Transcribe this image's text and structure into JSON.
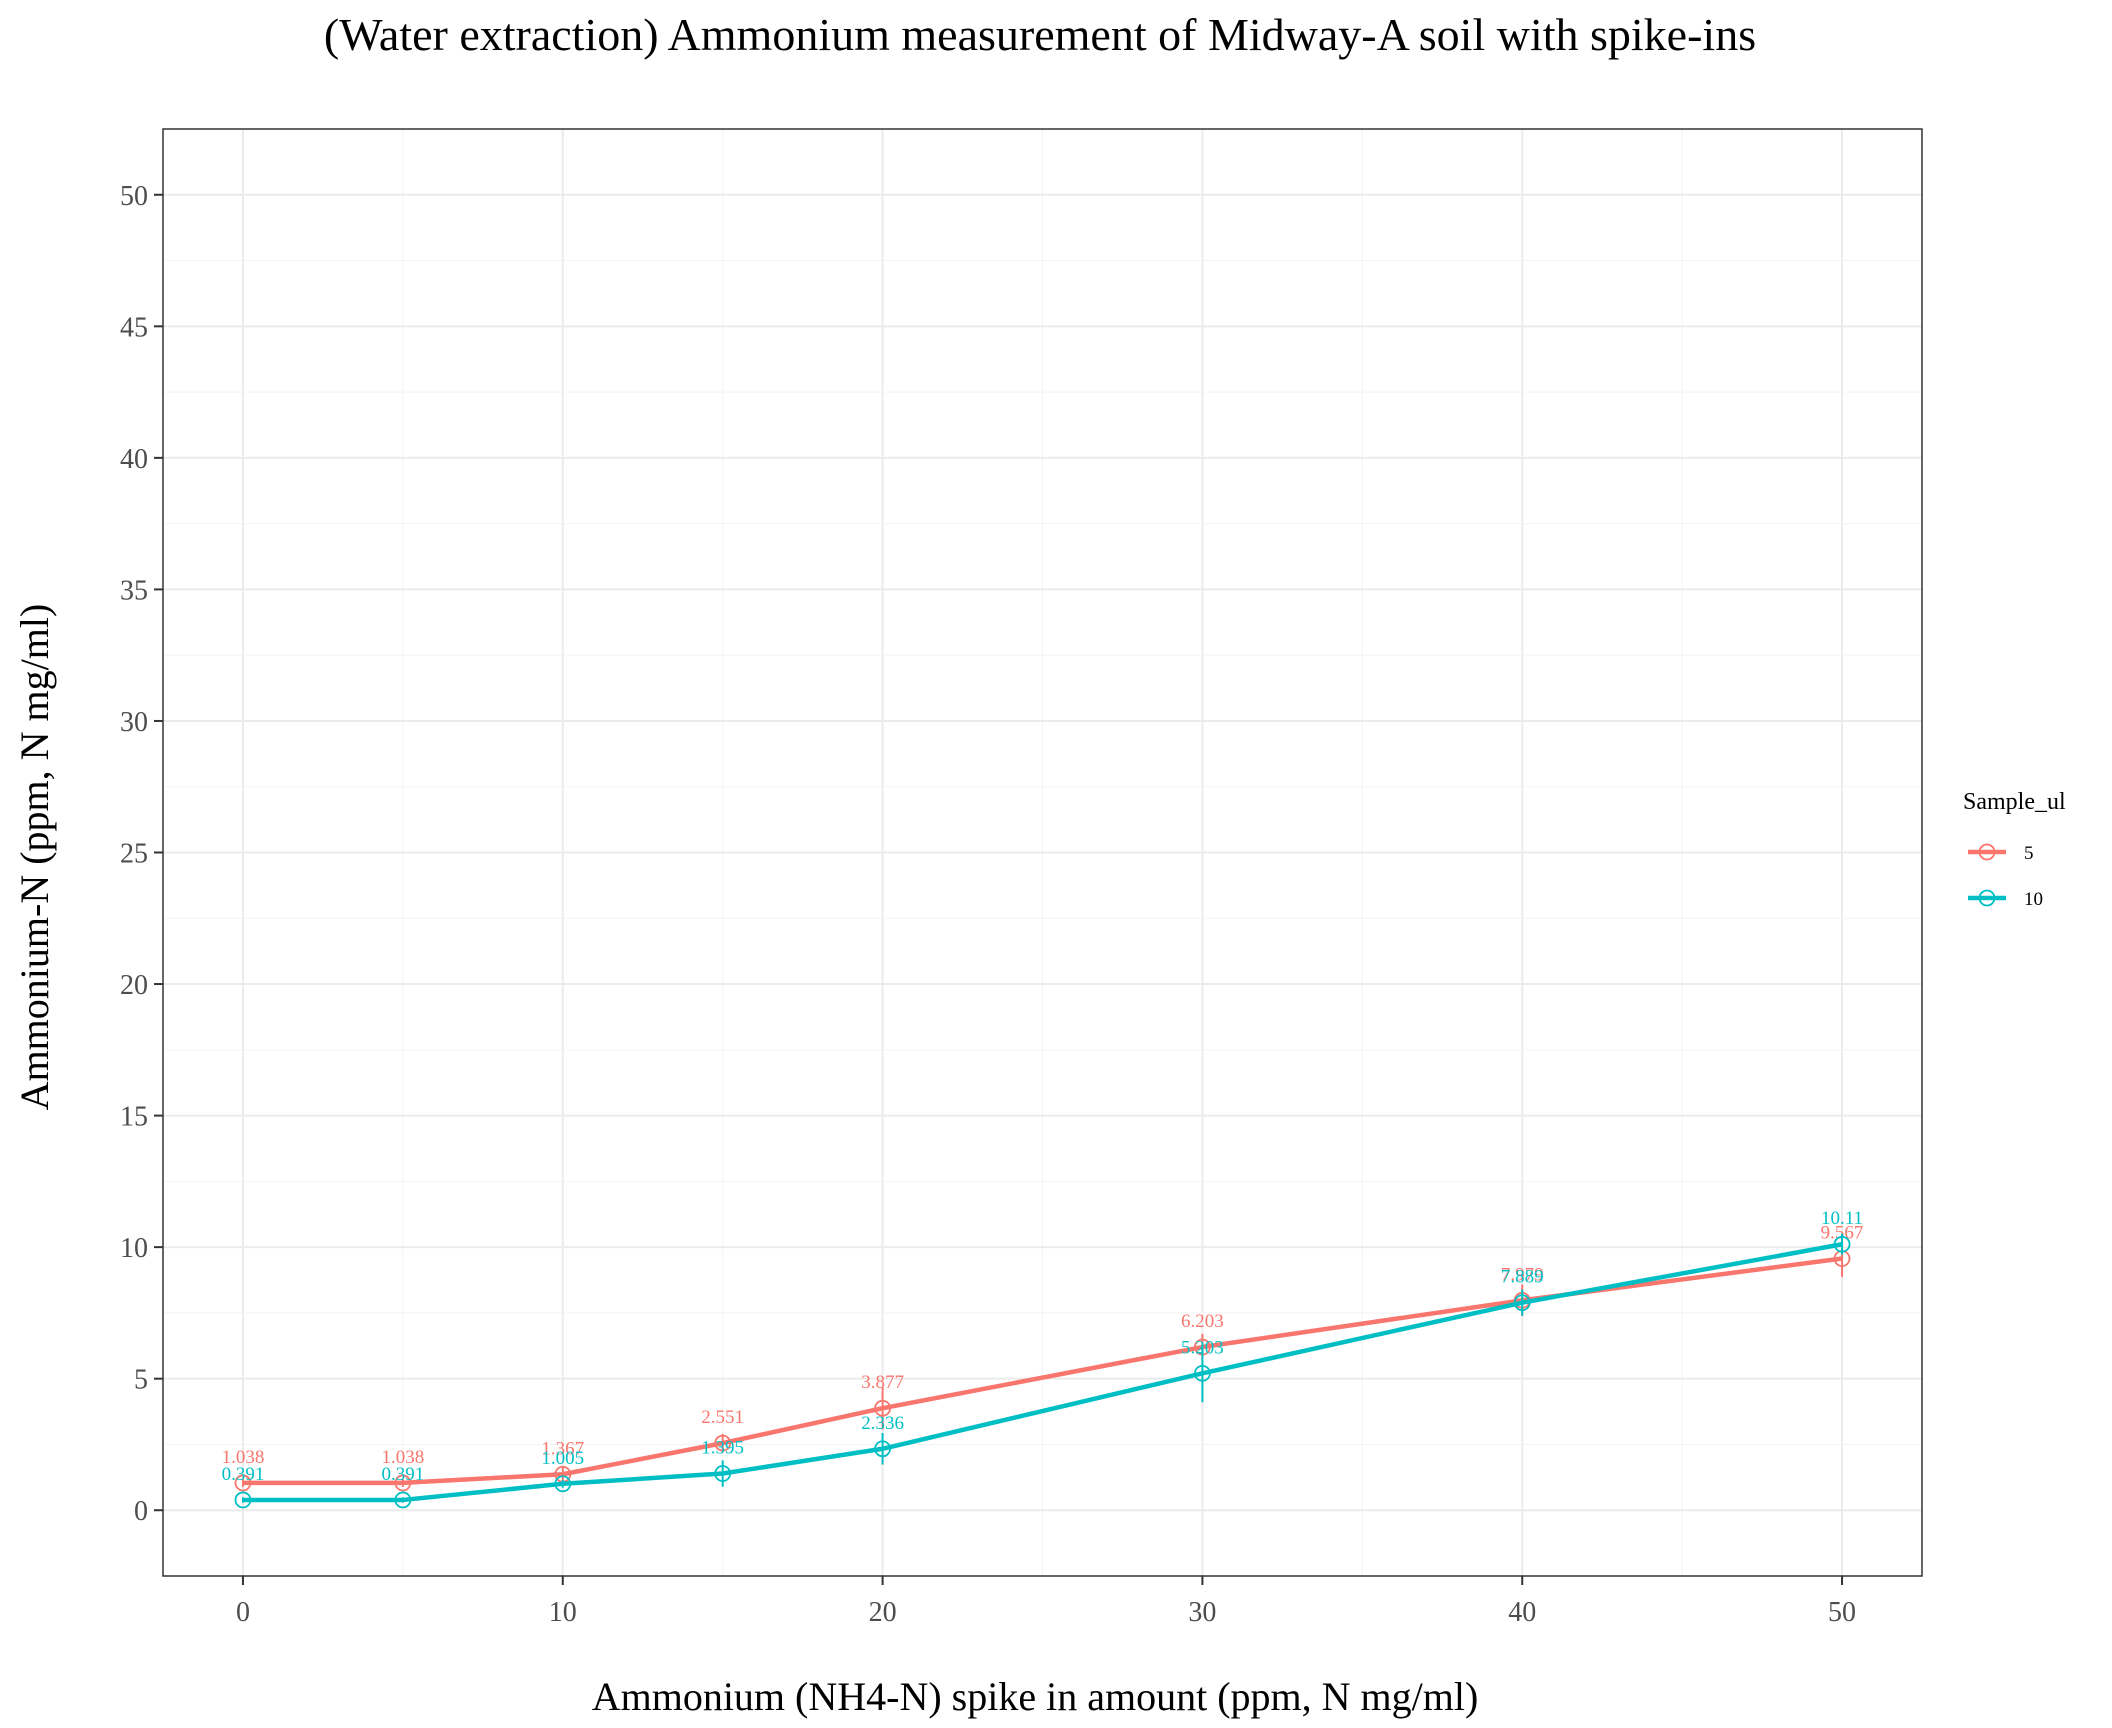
{
  "chart_data": {
    "type": "line",
    "title": "(Water extraction) Ammonium measurement of Midway-A soil with spike-ins",
    "xlabel": "Ammonium (NH4-N) spike in amount (ppm, N mg/ml)",
    "ylabel": "Ammonium-N (ppm, N mg/ml)",
    "xlim": [
      -2.5,
      52.5
    ],
    "ylim": [
      -2.5,
      52.5
    ],
    "x_ticks": [
      0,
      10,
      20,
      30,
      40,
      50
    ],
    "y_ticks": [
      0,
      5,
      10,
      15,
      20,
      25,
      30,
      35,
      40,
      45,
      50
    ],
    "x_tick_labels": [
      "0",
      "10",
      "20",
      "30",
      "40",
      "50"
    ],
    "y_tick_labels": [
      "0",
      "5",
      "10",
      "15",
      "20",
      "25",
      "30",
      "35",
      "40",
      "45",
      "50"
    ],
    "grid": true,
    "legend": {
      "title": "Sample_ul",
      "position": "right"
    },
    "series": [
      {
        "name": "5",
        "color": "#F8766D",
        "x": [
          0,
          5,
          10,
          15,
          20,
          30,
          40,
          50
        ],
        "y": [
          1.038,
          1.038,
          1.367,
          2.551,
          3.877,
          6.203,
          7.979,
          9.567
        ],
        "err": [
          0.15,
          0.15,
          0.3,
          0.35,
          0.8,
          0.5,
          0.6,
          0.7
        ],
        "labels": [
          "1.038",
          "1.038",
          "1.367",
          "2.551",
          "3.877",
          "6.203",
          "7.979",
          "9.567"
        ]
      },
      {
        "name": "10",
        "color": "#00BFC4",
        "x": [
          0,
          5,
          10,
          15,
          20,
          30,
          40,
          50
        ],
        "y": [
          0.391,
          0.391,
          1.005,
          1.395,
          2.336,
          5.203,
          7.889,
          10.11
        ],
        "err": [
          0.1,
          0.1,
          0.15,
          0.5,
          0.6,
          1.1,
          0.5,
          0.4
        ],
        "labels": [
          "0.391",
          "0.391",
          "1.005",
          "1.395",
          "2.336",
          "5.203",
          "7.889",
          "10.11"
        ]
      }
    ]
  }
}
